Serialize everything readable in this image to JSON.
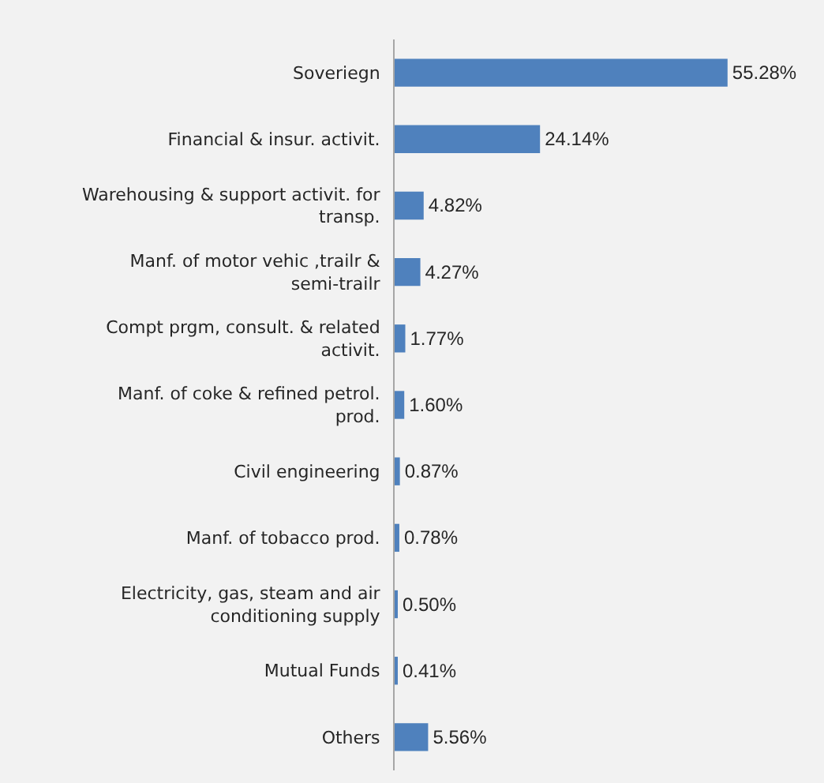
{
  "chart_data": {
    "type": "bar",
    "orientation": "horizontal",
    "categories": [
      "Soveriegn",
      "Financial & insur. activit.",
      "Warehousing & support activit. for transp.",
      "Manf. of motor vehic ,trailr & semi-trailr",
      "Compt prgm, consult. & related activit.",
      "Manf. of coke & refined petrol. prod.",
      "Civil engineering",
      "Manf. of tobacco prod.",
      "Electricity, gas, steam and air conditioning supply",
      "Mutual Funds",
      "Others"
    ],
    "values": [
      55.28,
      24.14,
      4.82,
      4.27,
      1.77,
      1.6,
      0.87,
      0.78,
      0.5,
      0.41,
      5.56
    ],
    "value_labels": [
      "55.28%",
      "24.14%",
      "4.82%",
      "4.27%",
      "1.77%",
      "1.60%",
      "0.87%",
      "0.78%",
      "0.50%",
      "0.41%",
      "5.56%"
    ],
    "color": "#4f81bd",
    "tick_labels": "y",
    "grid": false,
    "legend": false
  }
}
